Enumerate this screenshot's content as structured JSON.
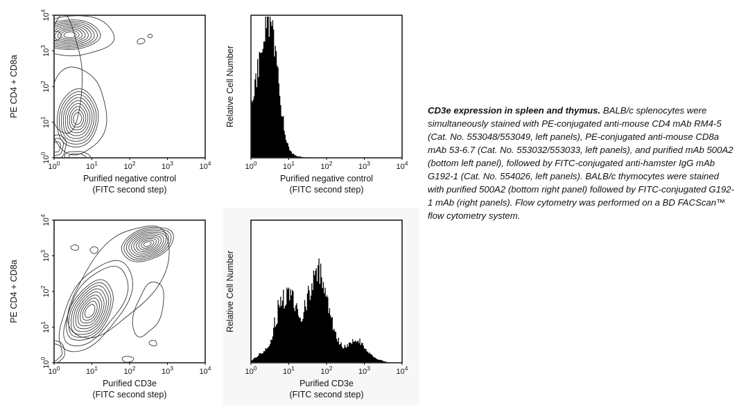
{
  "figure": {
    "caption_title": "CD3e expression in spleen and thymus.",
    "caption_body": "BALB/c splenocytes were simultaneously stained with PE-conjugated anti-mouse CD4 mAb RM4-5 (Cat. No. 553048/553049, left panels), PE-conjugated anti-mouse CD8a mAb 53-6.7 (Cat. No. 553032/553033, left panels), and purified mAb 500A2 (bottom left panel), followed by FITC-conjugated anti-hamster IgG mAb G192-1 (Cat. No. 554026, left panels). BALB/c thymocytes were stained with purified 500A2 (bottom right panel) followed by FITC-conjugated G192-1 mAb (right panels). Flow cytometry was performed on a BD FACScan™ flow cytometry system."
  },
  "colors": {
    "background": "#ffffff",
    "panel_shade": "#f7f7f7",
    "ink": "#111111",
    "contour_line": "#2b2b2b",
    "histogram_fill": "#000000"
  },
  "chart_data": [
    {
      "id": "contour-negative",
      "type": "contour",
      "xlabel": [
        "Purified negative control",
        "(FITC second step)"
      ],
      "ylabel": "PE CD4 + CD8a",
      "xscale": "log",
      "yscale": "log",
      "xlim": [
        1,
        10000
      ],
      "ylim": [
        1,
        10000
      ],
      "xticks": [
        "10^0",
        "10^1",
        "10^2",
        "10^3",
        "10^4"
      ],
      "yticks": [
        "10^0",
        "10^1",
        "10^2",
        "10^3",
        "10^4"
      ],
      "populations": [
        {
          "name": "PE-bright band",
          "cx": 0.42,
          "cy": 3.45,
          "rx": 0.8,
          "ry": 0.42,
          "tilt": 0,
          "levels": 9,
          "shrink": 0.1,
          "amp": 0.05
        },
        {
          "name": "band left core",
          "cx": 0.04,
          "cy": 3.42,
          "rx": 0.15,
          "ry": 0.12,
          "tilt": 0,
          "levels": 1,
          "shrink": 0.2,
          "amp": 0.12
        },
        {
          "name": "band envelope",
          "cx": 0.55,
          "cy": 3.42,
          "rx": 1.0,
          "ry": 0.58,
          "tilt": 0,
          "levels": 1,
          "shrink": 0.1,
          "amp": 0.09
        },
        {
          "name": "negative population",
          "cx": 0.62,
          "cy": 1.1,
          "rx": 0.56,
          "ry": 0.8,
          "tilt": 5,
          "levels": 9,
          "shrink": 0.1,
          "amp": 0.055
        },
        {
          "name": "negative envelope",
          "cx": 0.6,
          "cy": 1.3,
          "rx": 0.8,
          "ry": 1.18,
          "tilt": 3,
          "levels": 1,
          "shrink": 0.1,
          "amp": 0.1
        },
        {
          "name": "left neck envelope",
          "cx": 0.28,
          "cy": 2.3,
          "rx": 0.46,
          "ry": 1.62,
          "tilt": 0,
          "levels": 1,
          "shrink": 0.1,
          "amp": 0.1
        },
        {
          "name": "corner blob",
          "cx": 0.05,
          "cy": 0.3,
          "rx": 0.27,
          "ry": 0.34,
          "tilt": 0,
          "levels": 3,
          "shrink": 0.28,
          "amp": 0.16
        },
        {
          "name": "bottom blob",
          "cx": 0.62,
          "cy": 0.0,
          "rx": 0.32,
          "ry": 0.2,
          "tilt": 0,
          "levels": 2,
          "shrink": 0.35,
          "amp": 0.15
        },
        {
          "name": "debris dot 1",
          "cx": 2.3,
          "cy": 3.27,
          "rx": 0.11,
          "ry": 0.07,
          "tilt": -15,
          "levels": 1,
          "shrink": 0.2,
          "amp": 0.1
        },
        {
          "name": "debris dot 2",
          "cx": 2.54,
          "cy": 3.42,
          "rx": 0.06,
          "ry": 0.05,
          "tilt": -15,
          "levels": 1,
          "shrink": 0.2,
          "amp": 0.1
        }
      ]
    },
    {
      "id": "hist-negative",
      "type": "histogram",
      "xlabel": [
        "Purified negative control",
        "(FITC second step)"
      ],
      "ylabel": "Relative Cell Number",
      "xscale": "log",
      "xlim": [
        1,
        10000
      ],
      "xticks": [
        "10^0",
        "10^1",
        "10^2",
        "10^3",
        "10^4"
      ],
      "description": "single unstained peak near 3-4 FITC units, tail ends by ~30",
      "envelope": [
        [
          0,
          36
        ],
        [
          0.04,
          44
        ],
        [
          0.08,
          42
        ],
        [
          0.12,
          52
        ],
        [
          0.16,
          58
        ],
        [
          0.2,
          66
        ],
        [
          0.24,
          74
        ],
        [
          0.28,
          82
        ],
        [
          0.32,
          90
        ],
        [
          0.36,
          95
        ],
        [
          0.4,
          99
        ],
        [
          0.44,
          97
        ],
        [
          0.48,
          99
        ],
        [
          0.52,
          95
        ],
        [
          0.56,
          90
        ],
        [
          0.6,
          83
        ],
        [
          0.64,
          74
        ],
        [
          0.68,
          64
        ],
        [
          0.72,
          54
        ],
        [
          0.76,
          44
        ],
        [
          0.8,
          35
        ],
        [
          0.84,
          27
        ],
        [
          0.88,
          20
        ],
        [
          0.92,
          14
        ],
        [
          0.96,
          10
        ],
        [
          1,
          7
        ],
        [
          1.05,
          4.5
        ],
        [
          1.1,
          3
        ],
        [
          1.15,
          2
        ],
        [
          1.2,
          1.4
        ],
        [
          1.3,
          0.8
        ],
        [
          1.4,
          0.4
        ],
        [
          1.5,
          0.2
        ],
        [
          1.6,
          0
        ],
        [
          4,
          0
        ]
      ]
    },
    {
      "id": "contour-cd3e",
      "type": "contour",
      "xlabel": [
        "Purified CD3e",
        "(FITC second step)"
      ],
      "ylabel": "PE CD4 + CD8a",
      "xscale": "log",
      "yscale": "log",
      "xlim": [
        1,
        10000
      ],
      "ylim": [
        1,
        10000
      ],
      "xticks": [
        "10^0",
        "10^1",
        "10^2",
        "10^3",
        "10^4"
      ],
      "yticks": [
        "10^0",
        "10^1",
        "10^2",
        "10^3",
        "10^4"
      ],
      "populations": [
        {
          "name": "CD3e-bright PE-bright cluster",
          "cx": 2.47,
          "cy": 3.33,
          "rx": 0.7,
          "ry": 0.45,
          "tilt": -22,
          "levels": 10,
          "shrink": 0.095,
          "amp": 0.06
        },
        {
          "name": "diagonal dim population",
          "cx": 0.95,
          "cy": 1.45,
          "rx": 0.5,
          "ry": 0.95,
          "tilt": 33,
          "levels": 10,
          "shrink": 0.098,
          "amp": 0.07
        },
        {
          "name": "diagonal envelope",
          "cx": 1.1,
          "cy": 1.6,
          "rx": 0.72,
          "ry": 1.4,
          "tilt": 34,
          "levels": 2,
          "shrink": 0.13,
          "amp": 0.09
        },
        {
          "name": "full envelope",
          "cx": 1.72,
          "cy": 2.3,
          "rx": 0.88,
          "ry": 1.9,
          "tilt": 36,
          "levels": 1,
          "shrink": 0.1,
          "amp": 0.11
        },
        {
          "name": "right lobe",
          "cx": 2.5,
          "cy": 1.5,
          "rx": 0.35,
          "ry": 0.8,
          "tilt": 15,
          "levels": 1,
          "shrink": 0.1,
          "amp": 0.12
        },
        {
          "name": "small blob top 1",
          "cx": 0.55,
          "cy": 3.23,
          "rx": 0.1,
          "ry": 0.08,
          "tilt": 0,
          "levels": 1,
          "shrink": 0.2,
          "amp": 0.12
        },
        {
          "name": "small blob top 2",
          "cx": 1.06,
          "cy": 3.16,
          "rx": 0.11,
          "ry": 0.09,
          "tilt": 0,
          "levels": 1,
          "shrink": 0.2,
          "amp": 0.12
        },
        {
          "name": "bottom blob",
          "cx": 1.95,
          "cy": 0.1,
          "rx": 0.14,
          "ry": 0.09,
          "tilt": 0,
          "levels": 1,
          "shrink": 0.2,
          "amp": 0.15
        },
        {
          "name": "small blob right",
          "cx": 2.62,
          "cy": 0.55,
          "rx": 0.1,
          "ry": 0.08,
          "tilt": 0,
          "levels": 1,
          "shrink": 0.2,
          "amp": 0.15
        },
        {
          "name": "corner blob",
          "cx": 0.05,
          "cy": 0.3,
          "rx": 0.24,
          "ry": 0.3,
          "tilt": 0,
          "levels": 2,
          "shrink": 0.3,
          "amp": 0.16
        }
      ]
    },
    {
      "id": "hist-cd3e",
      "type": "histogram",
      "xlabel": [
        "Purified CD3e",
        "(FITC second step)"
      ],
      "ylabel": "Relative Cell Number",
      "xscale": "log",
      "xlim": [
        1,
        10000
      ],
      "xticks": [
        "10^0",
        "10^1",
        "10^2",
        "10^3",
        "10^4"
      ],
      "description": "bimodal: CD3e-dim peak near 12, main peak near 60-70, small bright shoulder near 500-1000",
      "envelope": [
        [
          0,
          1.5
        ],
        [
          0.1,
          3
        ],
        [
          0.2,
          5
        ],
        [
          0.3,
          7
        ],
        [
          0.4,
          10
        ],
        [
          0.5,
          14
        ],
        [
          0.55,
          18
        ],
        [
          0.6,
          22
        ],
        [
          0.65,
          27
        ],
        [
          0.7,
          32
        ],
        [
          0.75,
          38
        ],
        [
          0.8,
          42
        ],
        [
          0.85,
          45
        ],
        [
          0.9,
          43
        ],
        [
          0.95,
          46
        ],
        [
          1,
          44
        ],
        [
          1.05,
          47
        ],
        [
          1.1,
          44
        ],
        [
          1.15,
          41
        ],
        [
          1.2,
          37
        ],
        [
          1.25,
          34
        ],
        [
          1.3,
          32
        ],
        [
          1.35,
          33
        ],
        [
          1.4,
          36
        ],
        [
          1.45,
          40
        ],
        [
          1.5,
          45
        ],
        [
          1.55,
          50
        ],
        [
          1.6,
          55
        ],
        [
          1.65,
          59
        ],
        [
          1.7,
          62
        ],
        [
          1.75,
          65
        ],
        [
          1.8,
          66
        ],
        [
          1.85,
          62
        ],
        [
          1.9,
          57
        ],
        [
          1.95,
          52
        ],
        [
          2,
          46
        ],
        [
          2.05,
          40
        ],
        [
          2.1,
          34
        ],
        [
          2.15,
          28
        ],
        [
          2.2,
          23
        ],
        [
          2.25,
          19
        ],
        [
          2.3,
          16
        ],
        [
          2.35,
          14
        ],
        [
          2.4,
          12
        ],
        [
          2.45,
          11
        ],
        [
          2.5,
          11
        ],
        [
          2.55,
          12
        ],
        [
          2.6,
          13
        ],
        [
          2.65,
          14
        ],
        [
          2.7,
          15
        ],
        [
          2.75,
          16
        ],
        [
          2.8,
          15
        ],
        [
          2.85,
          16
        ],
        [
          2.9,
          14
        ],
        [
          2.95,
          12
        ],
        [
          3,
          10
        ],
        [
          3.1,
          7
        ],
        [
          3.2,
          5
        ],
        [
          3.3,
          3
        ],
        [
          3.4,
          2
        ],
        [
          3.5,
          1.2
        ],
        [
          3.6,
          0.6
        ],
        [
          3.7,
          0
        ],
        [
          4,
          0
        ]
      ]
    }
  ]
}
